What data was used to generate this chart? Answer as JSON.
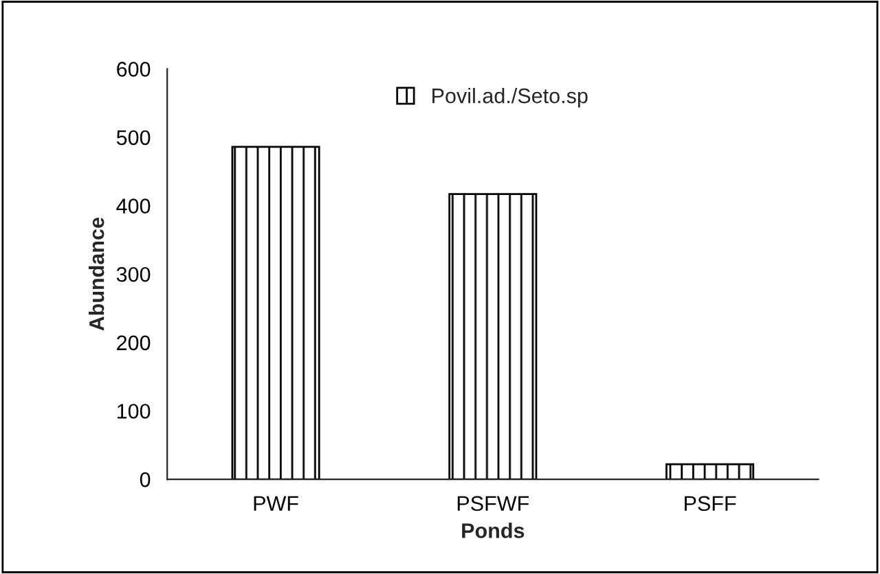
{
  "chart_data": {
    "type": "bar",
    "xlabel": "Ponds",
    "ylabel": "Abundance",
    "categories": [
      "PWF",
      "PSFWF",
      "PSFF"
    ],
    "series": [
      {
        "name": "Povil.ad./Seto.sp",
        "color": "#000000",
        "values": [
          486,
          417,
          22
        ]
      }
    ],
    "ylim": [
      0,
      600
    ],
    "yticks": [
      0,
      100,
      200,
      300,
      400,
      500,
      600
    ],
    "grid": false,
    "legend": "top"
  }
}
